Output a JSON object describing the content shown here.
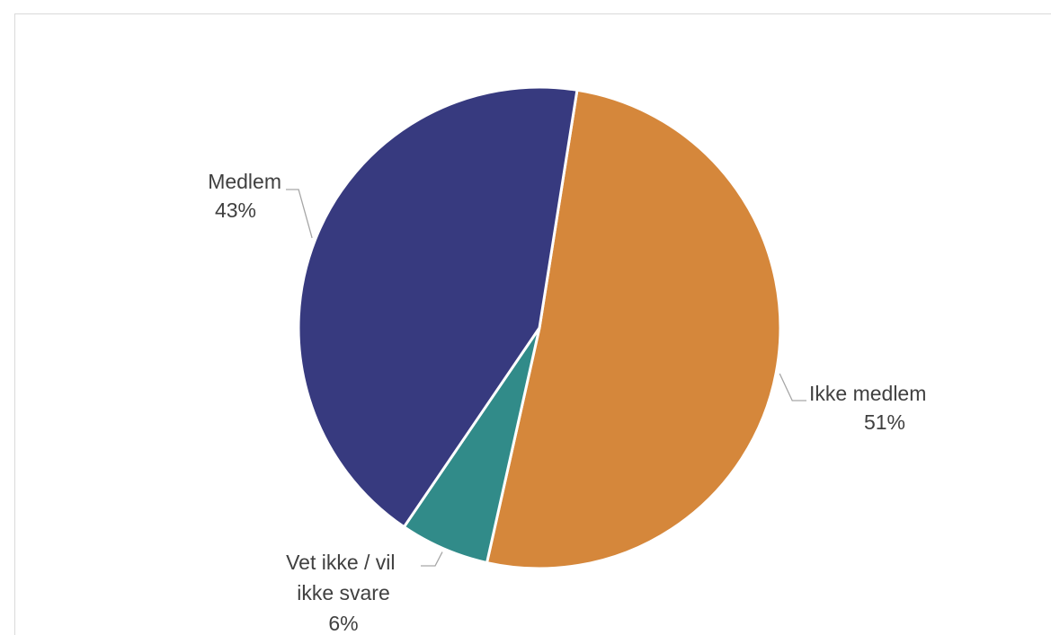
{
  "chart_data": {
    "type": "pie",
    "title": "",
    "slices": [
      {
        "label": "Ikke medlem",
        "value": 51,
        "value_label": "51%",
        "color": "#d5873b"
      },
      {
        "label": "Vet ikke / vil ikke svare",
        "value": 6,
        "value_label": "6%",
        "color": "#318b89"
      },
      {
        "label": "Medlem",
        "value": 43,
        "value_label": "43%",
        "color": "#373a7f"
      }
    ],
    "start_angle_deg": 9,
    "direction": "clockwise",
    "legend": "none",
    "data_labels": "outside with leader lines"
  }
}
